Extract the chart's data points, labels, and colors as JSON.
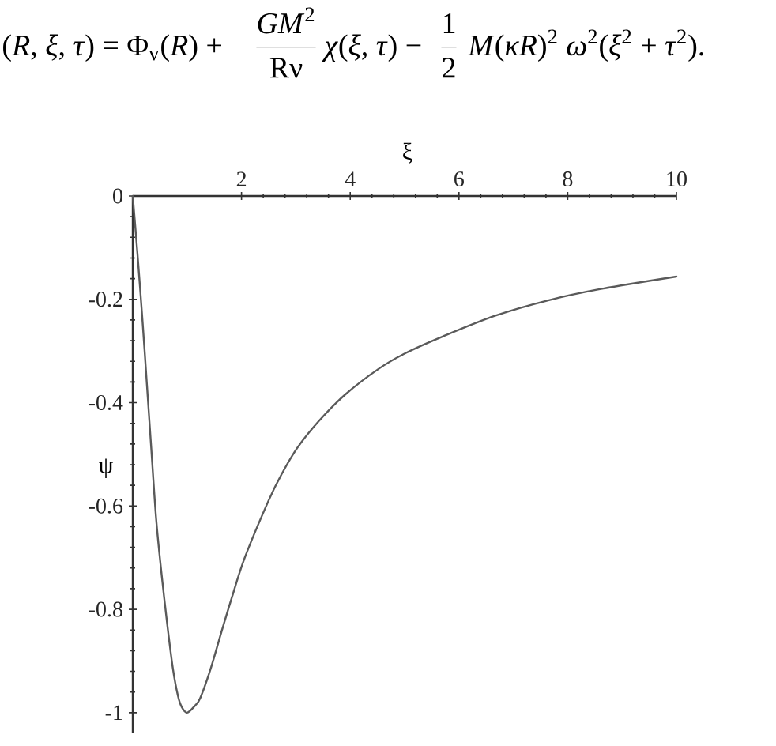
{
  "chart_data": {
    "type": "line",
    "xlabel": "ξ",
    "ylabel": "ψ",
    "annotations": [
      "(*R*, *ξ*, *τ*) = Φ$_{v}$(*R*) +",
      "*GM*$^{2}$",
      "Rν",
      "*χ*(*ξ*, *τ*) −",
      "1",
      "2",
      "*M*(*κR*)$^{2}$ *ω*$^{2}$(*ξ*$^{2}$ + *τ*$^{2}$)."
    ],
    "x": [
      0,
      0.085,
      0.18,
      0.26,
      0.34,
      0.43,
      0.53,
      0.64,
      0.74,
      0.83,
      0.9,
      1.0,
      1.14,
      1.24,
      1.43,
      1.63,
      1.82,
      2.06,
      2.5,
      2.74,
      3.03,
      3.42,
      3.9,
      4.53,
      5.02,
      5.7,
      6.66,
      7.64,
      8.61,
      10.0
    ],
    "values": [
      0,
      -0.11,
      -0.243,
      -0.365,
      -0.488,
      -0.625,
      -0.732,
      -0.834,
      -0.916,
      -0.967,
      -0.989,
      -1.0,
      -0.987,
      -0.972,
      -0.916,
      -0.844,
      -0.778,
      -0.7,
      -0.589,
      -0.538,
      -0.487,
      -0.436,
      -0.385,
      -0.334,
      -0.304,
      -0.272,
      -0.232,
      -0.202,
      -0.18,
      -0.156
    ],
    "color": "#5a5a5a",
    "line_style": "solid",
    "xlim": [
      0,
      10
    ],
    "ylim": [
      -1.04,
      0
    ],
    "xticks": [
      2,
      4,
      6,
      8,
      10
    ],
    "yticks": [
      0,
      -0.2,
      -0.4,
      -0.6,
      -0.8,
      -1
    ]
  }
}
